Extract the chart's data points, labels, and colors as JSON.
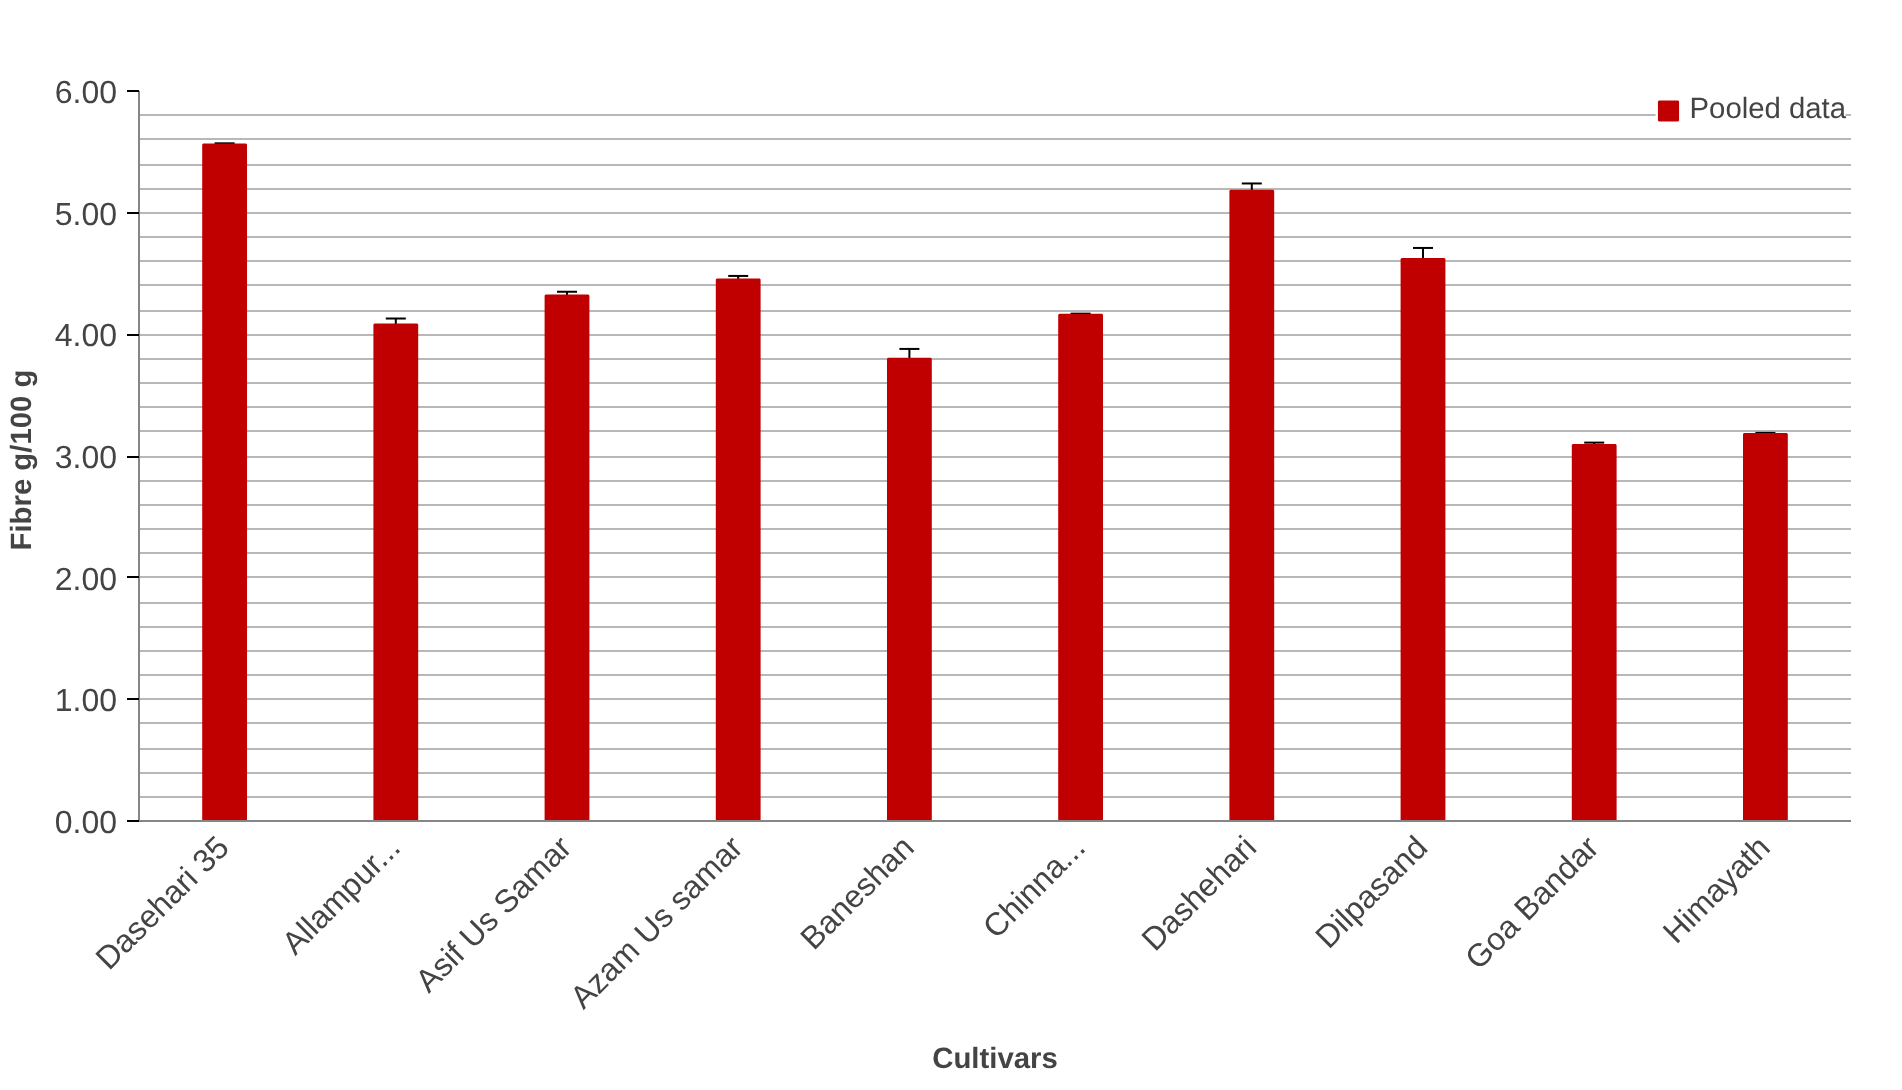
{
  "chart_data": {
    "type": "bar",
    "xlabel": "Cultivars",
    "ylabel": "Fibre  g/100 g",
    "categories": [
      "Dasehari 35",
      "Allampur...",
      "Asif Us Samar",
      "Azam Us samar",
      "Baneshan",
      "Chinna...",
      "Dashehari",
      "Dilpasand",
      "Goa Bandar",
      "Himayath"
    ],
    "series": [
      {
        "name": "Pooled data",
        "color": "#c00000",
        "values": [
          5.56,
          4.08,
          4.32,
          4.45,
          3.8,
          4.16,
          5.18,
          4.62,
          3.09,
          3.18
        ],
        "errors": [
          0.01,
          0.05,
          0.03,
          0.03,
          0.08,
          0.01,
          0.06,
          0.09,
          0.02,
          0.01
        ]
      }
    ],
    "ylim": [
      0,
      6
    ],
    "yticks": [
      {
        "value": 0,
        "label": "0.00"
      },
      {
        "value": 0.2,
        "label": null
      },
      {
        "value": 0.4,
        "label": null
      },
      {
        "value": 0.6,
        "label": null
      },
      {
        "value": 0.8,
        "label": null
      },
      {
        "value": 1,
        "label": "1.00"
      },
      {
        "value": 1.2,
        "label": null
      },
      {
        "value": 1.4,
        "label": null
      },
      {
        "value": 1.6,
        "label": null
      },
      {
        "value": 1.8,
        "label": null
      },
      {
        "value": 2,
        "label": "2.00"
      },
      {
        "value": 2.2,
        "label": null
      },
      {
        "value": 2.4,
        "label": null
      },
      {
        "value": 2.6,
        "label": null
      },
      {
        "value": 2.8,
        "label": null
      },
      {
        "value": 3,
        "label": "3.00"
      },
      {
        "value": 3.2,
        "label": null
      },
      {
        "value": 3.4,
        "label": null
      },
      {
        "value": 3.6,
        "label": null
      },
      {
        "value": 3.8,
        "label": null
      },
      {
        "value": 4,
        "label": "4.00"
      },
      {
        "value": 4.2,
        "label": null
      },
      {
        "value": 4.4,
        "label": null
      },
      {
        "value": 4.6,
        "label": null
      },
      {
        "value": 4.8,
        "label": null
      },
      {
        "value": 5,
        "label": "5.00"
      },
      {
        "value": 5.2,
        "label": null
      },
      {
        "value": 5.4,
        "label": null
      },
      {
        "value": 5.6,
        "label": null
      },
      {
        "value": 5.8,
        "label": null
      },
      {
        "value": 6,
        "label": "6.00"
      }
    ],
    "grid": "y",
    "legend": "top right"
  }
}
